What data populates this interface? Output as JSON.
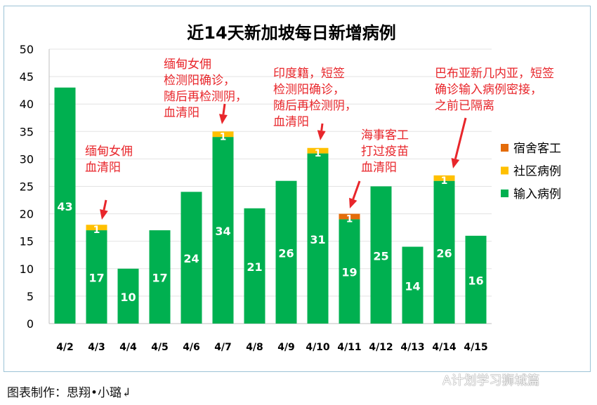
{
  "chart_data": {
    "type": "bar",
    "stacked": true,
    "title": "近14天新加坡每日新增病例",
    "categories": [
      "4/2",
      "4/3",
      "4/4",
      "4/5",
      "4/6",
      "4/7",
      "4/8",
      "4/9",
      "4/10",
      "4/11",
      "4/12",
      "4/13",
      "4/14",
      "4/15"
    ],
    "series": [
      {
        "name": "输入病例",
        "color": "#00b050",
        "values": [
          43,
          17,
          10,
          17,
          24,
          34,
          21,
          26,
          31,
          19,
          25,
          14,
          26,
          16
        ]
      },
      {
        "name": "社区病例",
        "color": "#ffc000",
        "values": [
          0,
          1,
          0,
          0,
          0,
          1,
          0,
          0,
          1,
          0,
          0,
          0,
          1,
          0
        ]
      },
      {
        "name": "宿舍客工",
        "color": "#e46c0a",
        "values": [
          0,
          0,
          0,
          0,
          0,
          0,
          0,
          0,
          0,
          1,
          0,
          0,
          0,
          0
        ]
      }
    ],
    "ylim": [
      0,
      50
    ],
    "yticks": [
      0,
      5,
      10,
      15,
      20,
      25,
      30,
      35,
      40,
      45,
      50
    ],
    "grid": true,
    "legend": "right",
    "annotations": [
      {
        "category": "4/3",
        "text": "缅甸女佣\n血清阳"
      },
      {
        "category": "4/7",
        "text": "缅甸女佣\n检测阳确诊，\n随后再检测阴，\n血清阳"
      },
      {
        "category": "4/10",
        "text": "印度籍，短签\n检测阳确诊，\n随后再检测阴，\n血清阳"
      },
      {
        "category": "4/11",
        "text": "海事客工\n打过疫苗\n血清阳"
      },
      {
        "category": "4/14",
        "text": "巴布亚新几内亚，短签\n确诊输入病例密接，\n之前已隔离"
      }
    ]
  },
  "footer": "图表制作：思翔•小璐↲",
  "watermark": "A计划学习狮城篇"
}
